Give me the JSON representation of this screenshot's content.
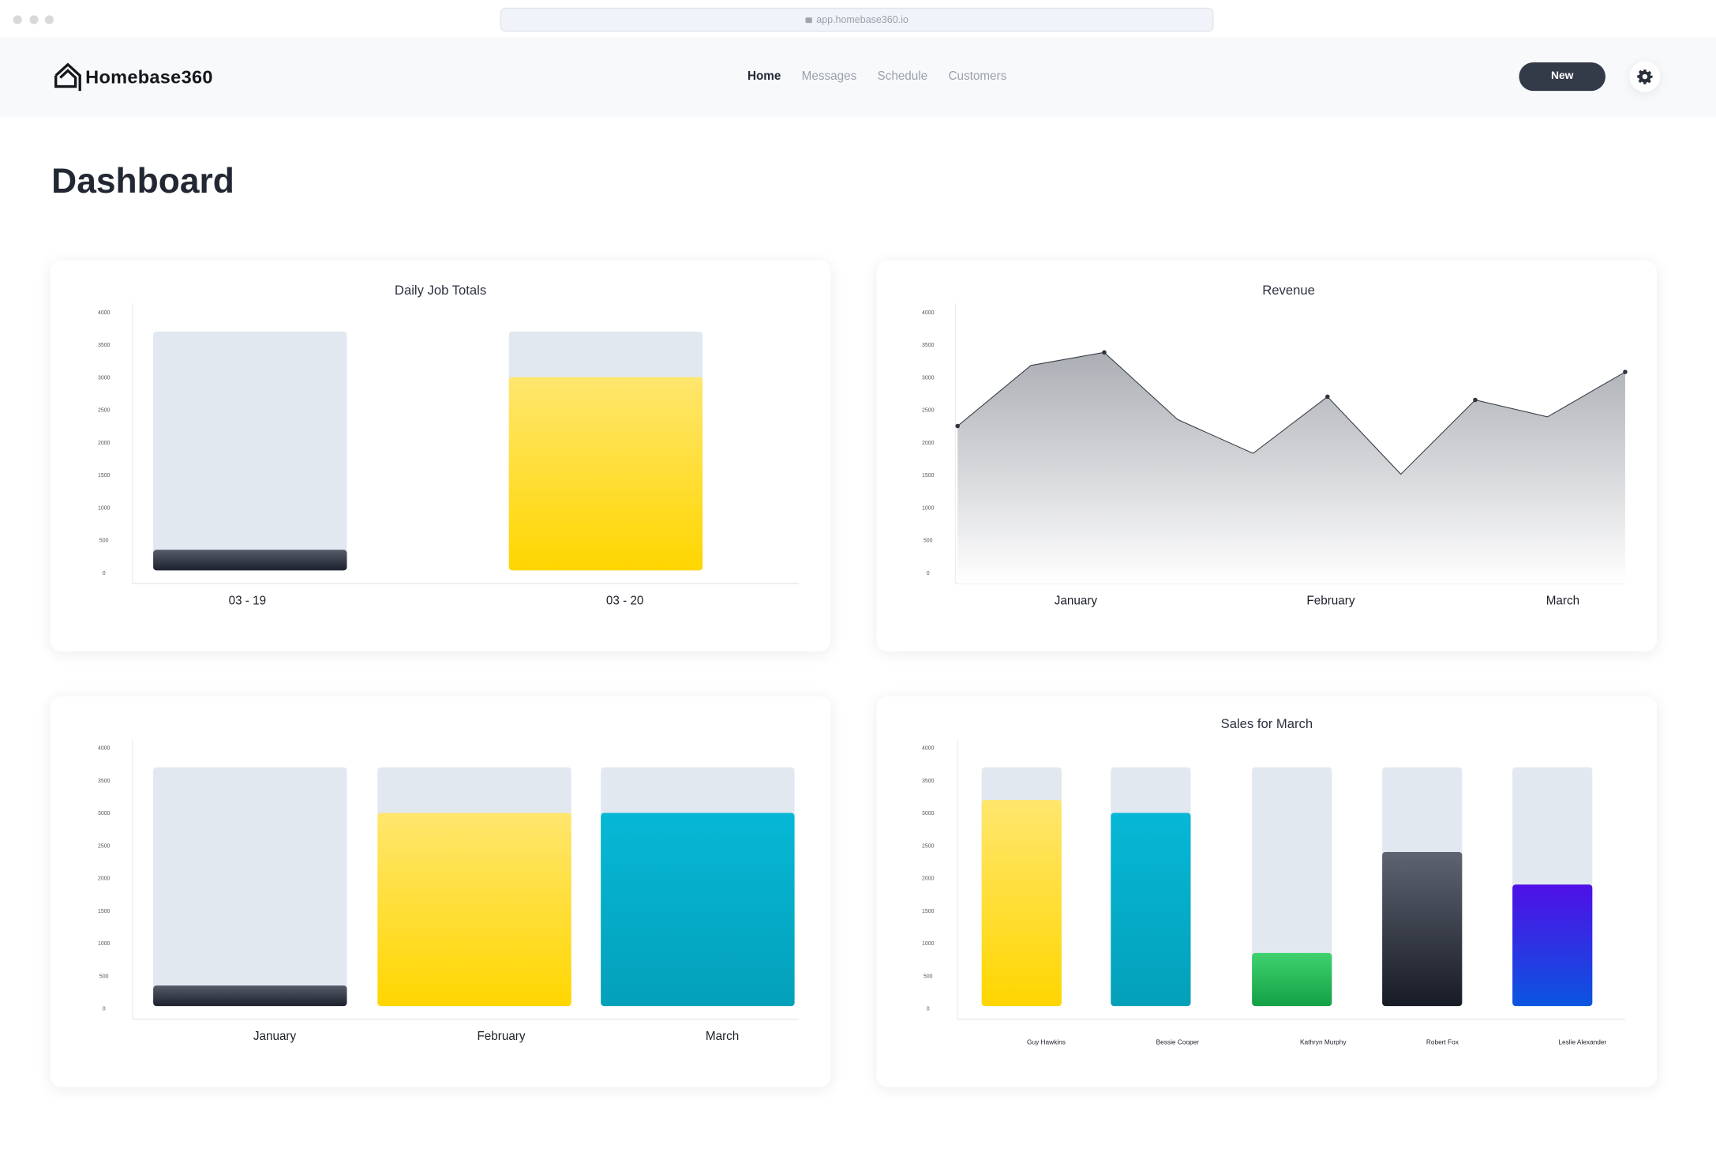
{
  "browser": {
    "url": "app.homebase360.io"
  },
  "nav": {
    "logo": "Homebase360",
    "links": [
      {
        "label": "Home",
        "active": true
      },
      {
        "label": "Messages"
      },
      {
        "label": "Schedule"
      },
      {
        "label": "Customers"
      }
    ],
    "new_button": "New"
  },
  "page": {
    "title": "Dashboard"
  },
  "colors": {
    "bg_bar": "#e2e8f0",
    "dark": "#2a303c",
    "yellow": "#ffd60a",
    "teal": "#06a8c8",
    "green": "#1fa84f",
    "slate": "#2b303b",
    "blue": "#2a2ae8"
  },
  "chart_data": [
    {
      "id": "daily",
      "type": "bar",
      "title": "Daily Job Totals",
      "ylim": [
        0,
        4000
      ],
      "yticks": [
        "0",
        "500",
        "1000",
        "1500",
        "2000",
        "2500",
        "3000",
        "3500",
        "4000"
      ],
      "categories": [
        "03 - 19",
        "03 - 20"
      ],
      "background_values": [
        3700,
        3700
      ],
      "values": [
        350,
        3000
      ],
      "bar_colors": [
        "dark",
        "yellow"
      ]
    },
    {
      "id": "revenue",
      "type": "area",
      "title": "Revenue",
      "ylim": [
        0,
        4000
      ],
      "yticks": [
        "0",
        "500",
        "1000",
        "1500",
        "2000",
        "2500",
        "3000",
        "3500",
        "4000"
      ],
      "x_labels": [
        "January",
        "February",
        "March"
      ],
      "values": [
        2250,
        3180,
        3380,
        2350,
        1830,
        2700,
        1510,
        2650,
        2390,
        3080
      ],
      "marked_points": [
        0,
        2,
        5,
        7,
        9
      ]
    },
    {
      "id": "monthly",
      "type": "bar",
      "title": "",
      "ylim": [
        0,
        4000
      ],
      "yticks": [
        "0",
        "500",
        "1000",
        "1500",
        "2000",
        "2500",
        "3000",
        "3500",
        "4000"
      ],
      "categories": [
        "January",
        "February",
        "March"
      ],
      "background_values": [
        3700,
        3700,
        3700
      ],
      "values": [
        350,
        3000,
        3000
      ],
      "bar_colors": [
        "dark",
        "yellow",
        "teal"
      ]
    },
    {
      "id": "sales",
      "type": "bar",
      "title": "Sales for March",
      "ylim": [
        0,
        4000
      ],
      "yticks": [
        "0",
        "500",
        "1000",
        "1500",
        "2000",
        "2500",
        "3000",
        "3500",
        "4000"
      ],
      "categories": [
        "Guy Hawkins",
        "Bessie Cooper",
        "Kathryn Murphy",
        "Robert Fox",
        "Leslie Alexander"
      ],
      "background_values": [
        3700,
        3700,
        3700,
        3700,
        3700
      ],
      "values": [
        3200,
        3000,
        850,
        2400,
        1900
      ],
      "bar_colors": [
        "yellow",
        "teal",
        "green",
        "slate",
        "blue"
      ]
    }
  ]
}
